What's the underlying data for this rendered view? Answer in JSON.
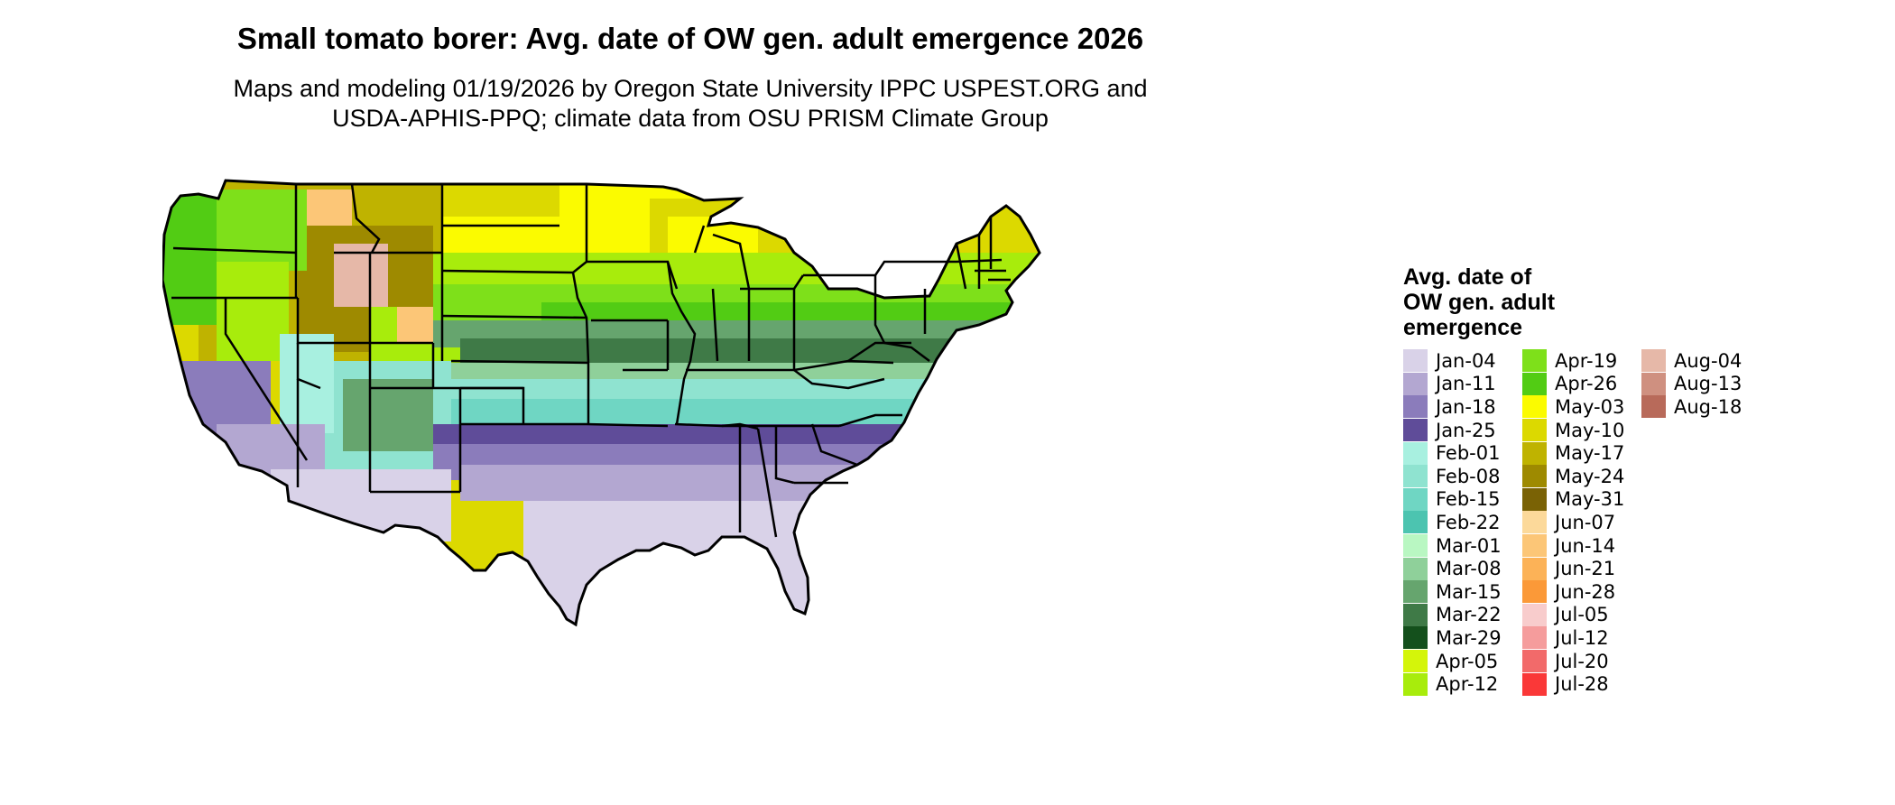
{
  "title": "Small tomato borer: Avg. date of OW gen. adult emergence 2026",
  "subtitle_line1": "Maps and modeling 01/19/2026 by Oregon State University IPPC USPEST.ORG and",
  "subtitle_line2": "USDA-APHIS-PPQ; climate data from OSU PRISM Climate Group",
  "legend": {
    "title_line1": "Avg. date of",
    "title_line2": "OW gen. adult",
    "title_line3": "emergence",
    "items": [
      {
        "label": "Jan-04",
        "color": "#d9d2e8"
      },
      {
        "label": "Jan-11",
        "color": "#b3a7d1"
      },
      {
        "label": "Jan-18",
        "color": "#8b7cbb"
      },
      {
        "label": "Jan-25",
        "color": "#5f4c99"
      },
      {
        "label": "Feb-01",
        "color": "#a8f0e0"
      },
      {
        "label": "Feb-08",
        "color": "#8fe3d0"
      },
      {
        "label": "Feb-15",
        "color": "#6fd6c3"
      },
      {
        "label": "Feb-22",
        "color": "#4cc4b0"
      },
      {
        "label": "Mar-01",
        "color": "#b9f7c2"
      },
      {
        "label": "Mar-08",
        "color": "#8fd09a"
      },
      {
        "label": "Mar-15",
        "color": "#66a56e"
      },
      {
        "label": "Mar-22",
        "color": "#3f7a47"
      },
      {
        "label": "Mar-29",
        "color": "#14501c"
      },
      {
        "label": "Apr-05",
        "color": "#d4f50a"
      },
      {
        "label": "Apr-12",
        "color": "#a8ec0c"
      },
      {
        "label": "Apr-19",
        "color": "#7ee01a"
      },
      {
        "label": "Apr-26",
        "color": "#52cc14"
      },
      {
        "label": "May-03",
        "color": "#fbfb00"
      },
      {
        "label": "May-10",
        "color": "#dcd900"
      },
      {
        "label": "May-17",
        "color": "#bfb300"
      },
      {
        "label": "May-24",
        "color": "#9e8a00"
      },
      {
        "label": "May-31",
        "color": "#7a6205"
      },
      {
        "label": "Jun-07",
        "color": "#fcd99a"
      },
      {
        "label": "Jun-14",
        "color": "#fcc677"
      },
      {
        "label": "Jun-21",
        "color": "#fcb257"
      },
      {
        "label": "Jun-28",
        "color": "#fb9938"
      },
      {
        "label": "Jul-05",
        "color": "#f8cccc"
      },
      {
        "label": "Jul-12",
        "color": "#f59c9c"
      },
      {
        "label": "Jul-20",
        "color": "#f26a6a"
      },
      {
        "label": "Jul-28",
        "color": "#fa3838"
      },
      {
        "label": "Aug-04",
        "color": "#e6b8a8"
      },
      {
        "label": "Aug-13",
        "color": "#cf9080"
      },
      {
        "label": "Aug-18",
        "color": "#b86a5a"
      }
    ]
  }
}
